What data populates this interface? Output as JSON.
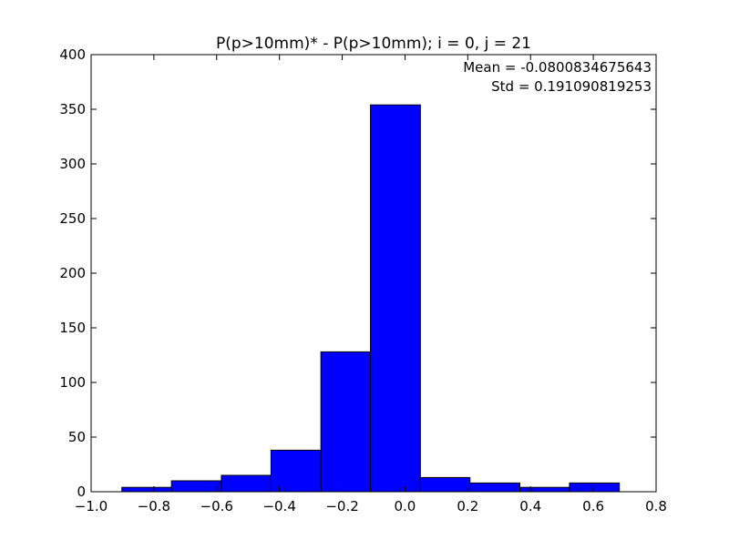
{
  "chart_data": {
    "type": "bar",
    "title": "P(p>10mm)* - P(p>10mm); i = 0, j = 21",
    "xlabel": "",
    "ylabel": "",
    "xlim": [
      -1.0,
      0.8
    ],
    "ylim": [
      0,
      400
    ],
    "xticks": [
      "−1.0",
      "−0.8",
      "−0.6",
      "−0.4",
      "−0.2",
      "0.0",
      "0.2",
      "0.4",
      "0.6",
      "0.8"
    ],
    "xtick_values": [
      -1.0,
      -0.8,
      -0.6,
      -0.4,
      -0.2,
      0.0,
      0.2,
      0.4,
      0.6,
      0.8
    ],
    "yticks": [
      "0",
      "50",
      "100",
      "150",
      "200",
      "250",
      "300",
      "350",
      "400"
    ],
    "ytick_values": [
      0,
      50,
      100,
      150,
      200,
      250,
      300,
      350,
      400
    ],
    "grid": false,
    "bar_color": "#0000ff",
    "bins": [
      {
        "x0": -0.902,
        "x1": -0.744,
        "count": 4
      },
      {
        "x0": -0.744,
        "x1": -0.585,
        "count": 10
      },
      {
        "x0": -0.585,
        "x1": -0.427,
        "count": 15
      },
      {
        "x0": -0.427,
        "x1": -0.268,
        "count": 38
      },
      {
        "x0": -0.268,
        "x1": -0.11,
        "count": 128
      },
      {
        "x0": -0.11,
        "x1": 0.049,
        "count": 354
      },
      {
        "x0": 0.049,
        "x1": 0.207,
        "count": 13
      },
      {
        "x0": 0.207,
        "x1": 0.366,
        "count": 8
      },
      {
        "x0": 0.366,
        "x1": 0.524,
        "count": 4
      },
      {
        "x0": 0.524,
        "x1": 0.683,
        "count": 8
      }
    ],
    "annotations": {
      "mean": "Mean = -0.0800834675643",
      "std": "Std = 0.191090819253"
    }
  }
}
